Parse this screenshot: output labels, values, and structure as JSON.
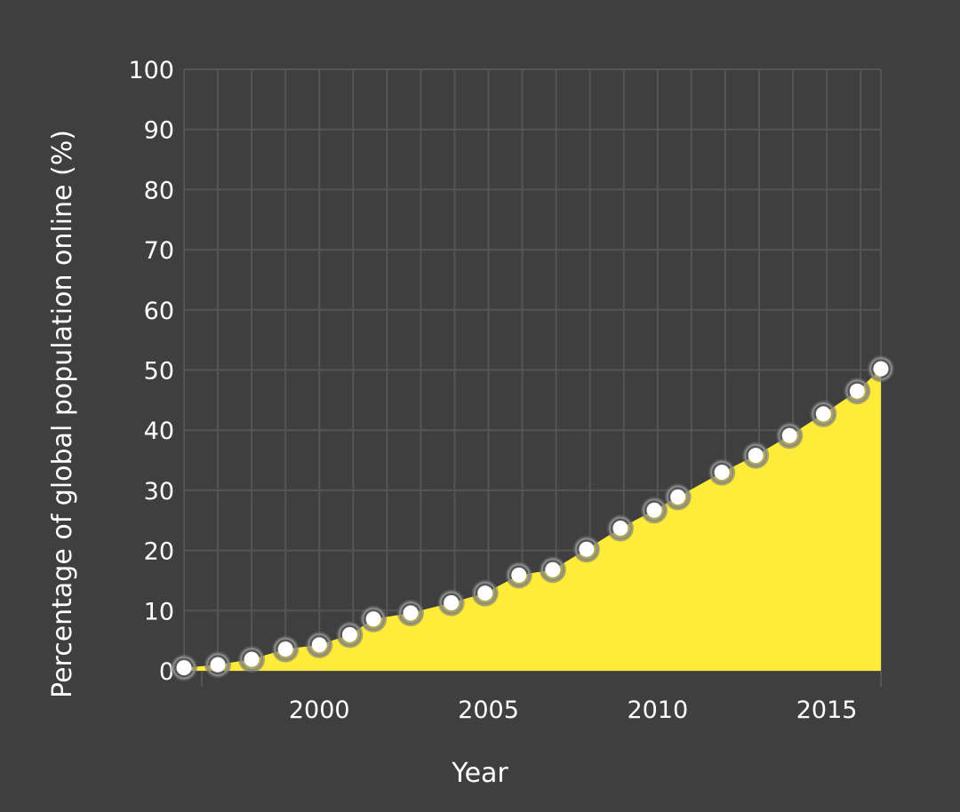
{
  "chart_data": {
    "type": "area",
    "title": "",
    "xlabel": "Year",
    "ylabel": "Percentage of global population online (%)",
    "xlim": [
      1996,
      2016.6
    ],
    "ylim": [
      0,
      100
    ],
    "x_ticks": [
      2000,
      2005,
      2010,
      2015
    ],
    "y_ticks": [
      0,
      10,
      20,
      30,
      40,
      50,
      60,
      70,
      80,
      90,
      100
    ],
    "grid": true,
    "series": [
      {
        "x": [
          1996.0,
          1997.0,
          1998.0,
          1999.0,
          2000.0,
          2000.9,
          2001.6,
          2002.7,
          2003.9,
          2004.9,
          2005.9,
          2006.9,
          2007.9,
          2008.9,
          2009.9,
          2010.6,
          2011.9,
          2012.9,
          2013.9,
          2014.9,
          2015.9,
          2016.6
        ],
        "y": [
          0.5,
          1.0,
          1.9,
          3.6,
          4.3,
          6.0,
          8.6,
          9.6,
          11.3,
          12.9,
          15.9,
          16.8,
          20.2,
          23.7,
          26.7,
          28.9,
          33.0,
          35.8,
          39.1,
          42.7,
          46.5,
          50.2
        ]
      }
    ],
    "colors": {
      "background": "#3f3f3f",
      "grid": "#555555",
      "area": "#ffec3a",
      "marker_fill": "#ffffff",
      "marker_halo": "#6e6e6e",
      "text": "#ffffff"
    }
  }
}
